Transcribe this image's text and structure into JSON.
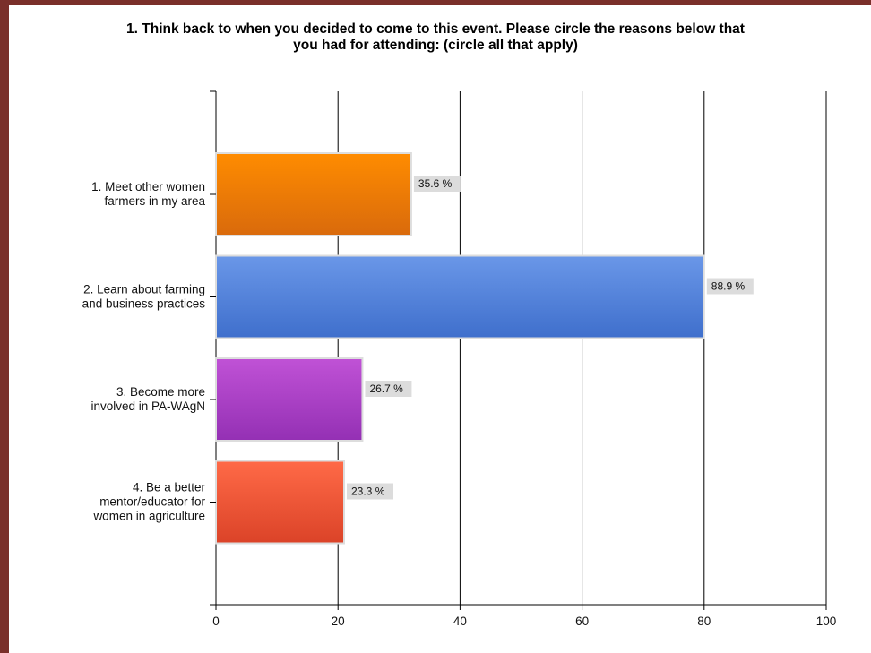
{
  "chart_data": {
    "type": "bar",
    "orientation": "horizontal",
    "title": "1. Think back to when you decided to come to this event. Please circle the reasons below that\nyou had for attending: (circle all that apply)",
    "xlabel": "",
    "ylabel": "",
    "xlim": [
      0,
      100
    ],
    "x_ticks": [
      0,
      20,
      40,
      60,
      80,
      100
    ],
    "grid": true,
    "categories": [
      [
        "1. Meet other women",
        "farmers in my area"
      ],
      [
        "2. Learn about farming",
        "and business practices"
      ],
      [
        "3. Become more",
        "involved in PA-WAgN"
      ],
      [
        "4. Be a better",
        "mentor/educator for",
        "women in agriculture"
      ]
    ],
    "values": [
      32,
      80,
      24,
      21
    ],
    "value_labels": [
      "35.6 %",
      "88.9 %",
      "26.7 %",
      "23.3 %"
    ],
    "colors": [
      [
        "#ff8c00",
        "#d96a0c"
      ],
      [
        "#6a97e8",
        "#3f6fcc"
      ],
      [
        "#c052d6",
        "#9430b4"
      ],
      [
        "#ff6a47",
        "#db4328"
      ]
    ]
  }
}
